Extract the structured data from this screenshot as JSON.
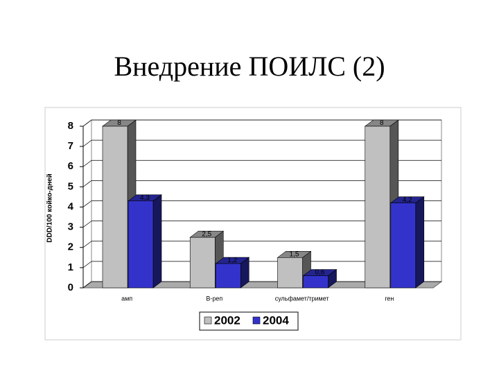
{
  "title": "Внедрение ПОИЛС (2)",
  "chart_data": {
    "type": "bar3d",
    "y_label": "DDD/100 койко-дней",
    "categories": [
      "амп",
      "В-реп",
      "сульфамет/тримет",
      "ген"
    ],
    "series": [
      {
        "name": "2002",
        "color": "#c0c0c0",
        "values": [
          8,
          2.5,
          1.5,
          8
        ],
        "value_labels": [
          "8",
          "2,5",
          "1,5",
          "8"
        ]
      },
      {
        "name": "2004",
        "color": "#3333cc",
        "values": [
          4.3,
          1.2,
          0.6,
          4.2
        ],
        "value_labels": [
          "4,3",
          "1,2",
          "0,6",
          "4,2"
        ]
      }
    ],
    "ylim": [
      0,
      8
    ],
    "yticks": [
      0,
      1,
      2,
      3,
      4,
      5,
      6,
      7,
      8
    ],
    "grid": true
  }
}
